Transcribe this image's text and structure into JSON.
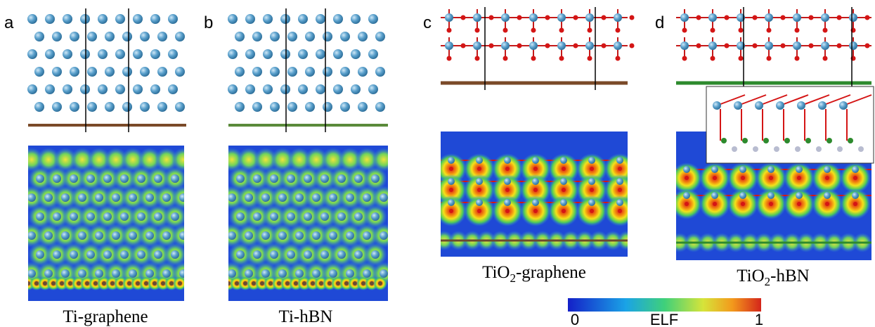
{
  "panels": [
    {
      "label": "a",
      "caption": {
        "text": "Ti-graphene"
      }
    },
    {
      "label": "b",
      "caption": {
        "text": "Ti-hBN"
      }
    },
    {
      "label": "c",
      "caption": {
        "prefix": "TiO",
        "sub": "2",
        "suffix": "-graphene"
      }
    },
    {
      "label": "d",
      "caption": {
        "prefix": "TiO",
        "sub": "2",
        "suffix": "-hBN"
      }
    }
  ],
  "colorbar": {
    "min": 0,
    "label": "ELF",
    "max": 1
  }
}
